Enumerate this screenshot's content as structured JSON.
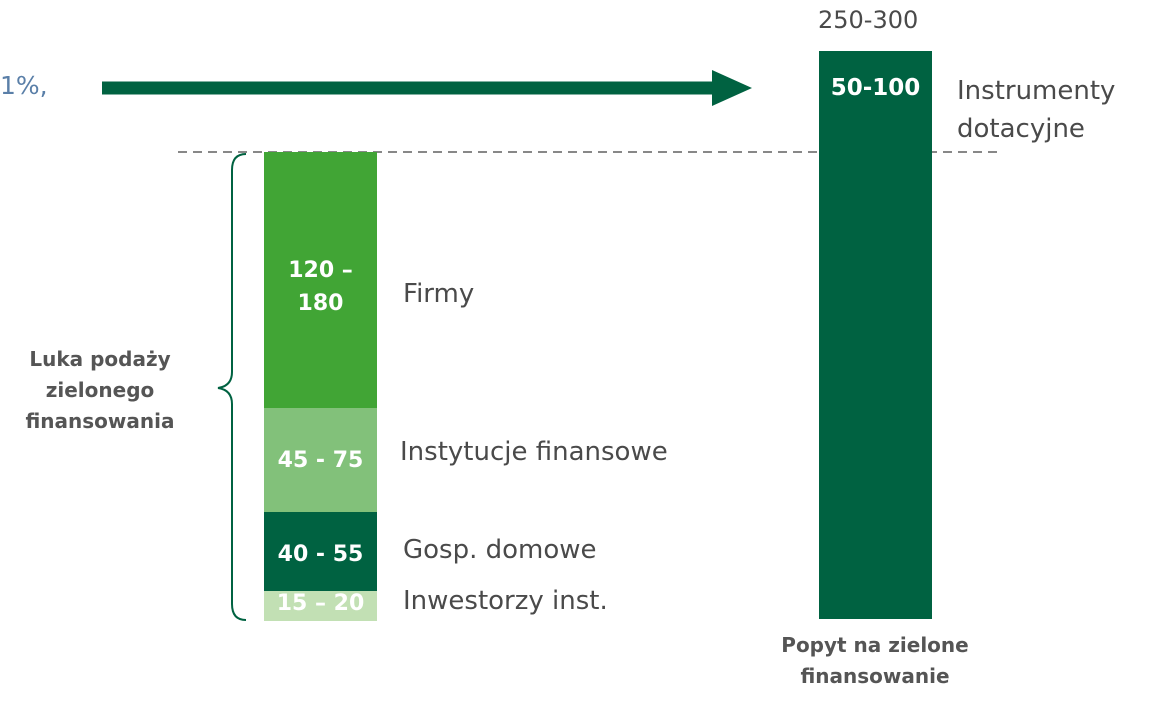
{
  "header_fragment": "1%,",
  "chart_data": {
    "type": "bar",
    "stacked": true,
    "categories": [
      "",
      "Popyt na zielone finansowanie"
    ],
    "supply_stack": [
      {
        "label": "15 – 20",
        "name": "Inwestorzy inst.",
        "range": [
          15,
          20
        ],
        "color": "#c2e0b4"
      },
      {
        "label": "40 - 55",
        "name": "Gosp. domowe",
        "range": [
          40,
          55
        ],
        "color": "#006241"
      },
      {
        "label": "45 - 75",
        "name": "Instytucje finansowe",
        "range": [
          45,
          75
        ],
        "color": "#82c17a"
      },
      {
        "label": "120 – 180",
        "name": "Firmy",
        "range": [
          120,
          180
        ],
        "color": "#41a535"
      }
    ],
    "demand_bar": {
      "total_label": "250-300",
      "total_range": [
        250,
        300
      ],
      "top_segment_label": "50-100",
      "top_segment_name": "Instrumenty dotacyjne",
      "top_segment_range": [
        50,
        100
      ],
      "color": "#006241"
    },
    "brace_label": "Luka podaży zielonego finansowania",
    "demand_label": "Popyt na zielone finansowanie"
  },
  "colors": {
    "arrow": "#006241",
    "dashed_line": "#888888",
    "brace": "#006241"
  }
}
